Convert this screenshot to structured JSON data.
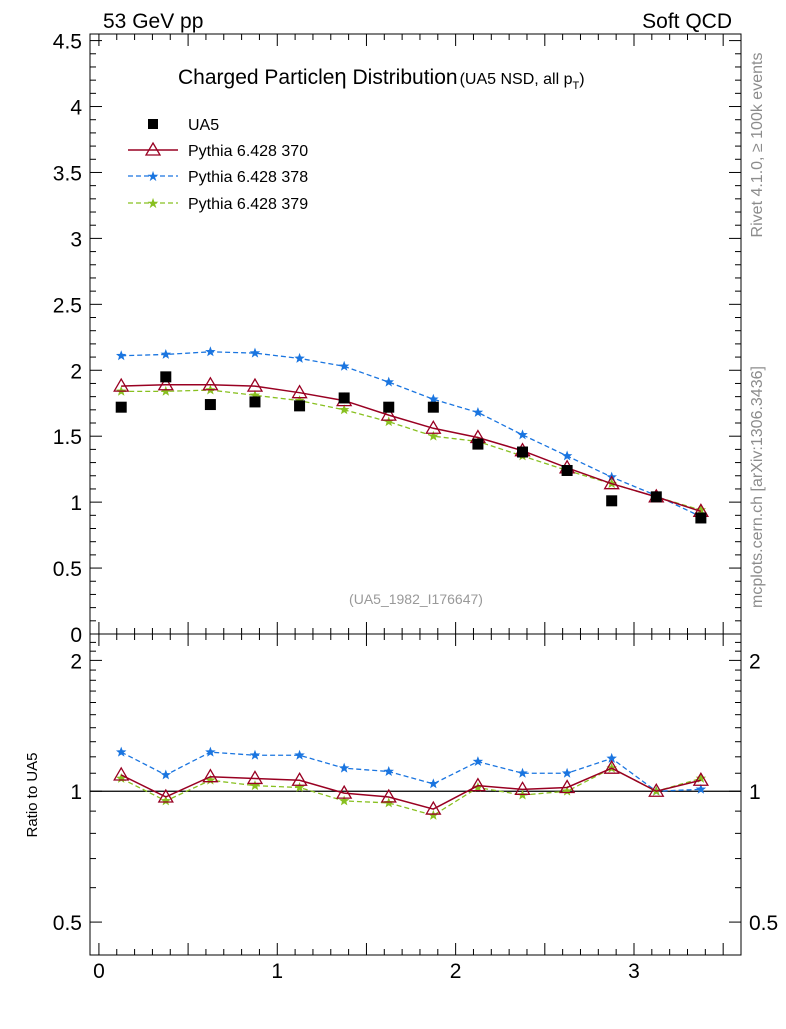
{
  "header": {
    "left": "53 GeV pp",
    "right": "Soft QCD"
  },
  "side_labels": {
    "rivet": "Rivet 4.1.0, ≥ 100k events",
    "source": "mcplots.cern.ch [arXiv:1306.3436]"
  },
  "colors": {
    "data": "#000000",
    "p370": "#990022",
    "p378": "#1a75e0",
    "p379": "#88c020"
  },
  "chart_data": [
    {
      "type": "scatter",
      "title_main": "Charged Particle",
      "title_eta": "η",
      "title_rest": " Distribution",
      "title_sub": "(UA5 NSD, all p",
      "title_sub_T": "T",
      "title_sub_close": ")",
      "analysis_id": "(UA5_1982_I176647)",
      "xlim": [
        -0.05,
        3.6
      ],
      "ylim": [
        0,
        4.55
      ],
      "y_ticks": [
        0,
        0.5,
        1,
        1.5,
        2,
        2.5,
        3,
        3.5,
        4,
        4.5
      ],
      "y_tick_labels": [
        "0",
        "0.5",
        "1",
        "1.5",
        "2",
        "2.5",
        "3",
        "3.5",
        "4",
        "4.5"
      ],
      "x": [
        0.125,
        0.375,
        0.625,
        0.875,
        1.125,
        1.375,
        1.625,
        1.875,
        2.125,
        2.375,
        2.625,
        2.875,
        3.125,
        3.375
      ],
      "series": [
        {
          "key": "ua5",
          "name": "UA5",
          "style": "data",
          "values": [
            1.72,
            1.95,
            1.74,
            1.76,
            1.73,
            1.79,
            1.72,
            1.72,
            1.44,
            1.38,
            1.24,
            1.01,
            1.04,
            0.88
          ]
        },
        {
          "key": "p370",
          "name": "Pythia 6.428 370",
          "style": "solid-triangle",
          "values": [
            1.88,
            1.89,
            1.89,
            1.88,
            1.83,
            1.77,
            1.66,
            1.56,
            1.49,
            1.39,
            1.26,
            1.14,
            1.04,
            0.93
          ]
        },
        {
          "key": "p378",
          "name": "Pythia 6.428 378",
          "style": "dash-star",
          "values": [
            2.11,
            2.12,
            2.14,
            2.13,
            2.09,
            2.03,
            1.91,
            1.78,
            1.68,
            1.51,
            1.35,
            1.19,
            1.05,
            0.89
          ]
        },
        {
          "key": "p379",
          "name": "Pythia 6.428 379",
          "style": "dash-star",
          "values": [
            1.84,
            1.84,
            1.85,
            1.81,
            1.77,
            1.7,
            1.61,
            1.5,
            1.46,
            1.35,
            1.24,
            1.14,
            1.04,
            0.94
          ]
        }
      ]
    },
    {
      "type": "line",
      "ylabel": "Ratio to UA5",
      "xlim": [
        -0.05,
        3.6
      ],
      "ylim": [
        0.42,
        2.3
      ],
      "y_ticks_left": [
        0.5,
        1,
        2
      ],
      "y_tick_labels": [
        "0.5",
        "1",
        "2"
      ],
      "x_ticks": [
        0,
        1,
        2,
        3
      ],
      "x_tick_labels": [
        "0",
        "1",
        "2",
        "3"
      ],
      "reference": 1,
      "x": [
        0.125,
        0.375,
        0.625,
        0.875,
        1.125,
        1.375,
        1.625,
        1.875,
        2.125,
        2.375,
        2.625,
        2.875,
        3.125,
        3.375
      ],
      "series": [
        {
          "key": "p370",
          "name": "Pythia 6.428 370",
          "style": "solid-triangle",
          "values": [
            1.09,
            0.97,
            1.08,
            1.07,
            1.06,
            0.99,
            0.97,
            0.91,
            1.03,
            1.01,
            1.02,
            1.13,
            1.0,
            1.06
          ]
        },
        {
          "key": "p378",
          "name": "Pythia 6.428 378",
          "style": "dash-star",
          "values": [
            1.23,
            1.09,
            1.23,
            1.21,
            1.21,
            1.13,
            1.11,
            1.04,
            1.17,
            1.1,
            1.1,
            1.19,
            1.0,
            1.01
          ]
        },
        {
          "key": "p379",
          "name": "Pythia 6.428 379",
          "style": "dash-star",
          "values": [
            1.07,
            0.95,
            1.06,
            1.03,
            1.02,
            0.95,
            0.94,
            0.88,
            1.02,
            0.98,
            1.0,
            1.13,
            1.0,
            1.07
          ]
        }
      ]
    }
  ]
}
